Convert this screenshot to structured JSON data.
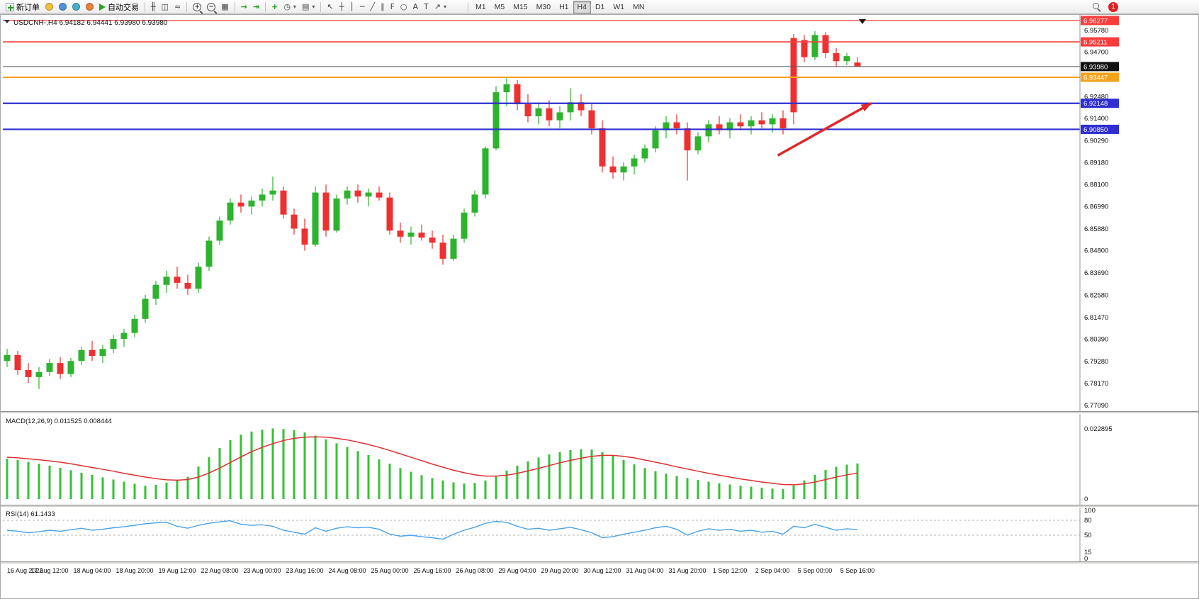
{
  "toolbar": {
    "new_order_label": "新订单",
    "autotrading_label": "自动交易",
    "timeframes": [
      "M1",
      "M5",
      "M15",
      "M30",
      "H1",
      "H4",
      "D1",
      "W1",
      "MN"
    ],
    "active_timeframe": "H4",
    "notification_count": "1"
  },
  "icons": {
    "dropdown": "▾",
    "bars_chart": "╫",
    "candle_chart": "◫",
    "line_chart": "≈",
    "zoom_in": "+",
    "zoom_out": "−",
    "tile_windows": "▦",
    "auto_scroll": "→",
    "chart_shift": "⇥",
    "indicators_plus": "+",
    "periods_clock": "◷",
    "template": "▤",
    "cursor": "↖",
    "crosshair": "┼",
    "vertical_line": "│",
    "horizontal_line": "─",
    "trendline": "╱",
    "channel": "∥",
    "fibonacci": "F",
    "shapes": "○",
    "text_tool": "A",
    "label_tool": "T",
    "arrow_tool": "↗"
  },
  "chart": {
    "symbol_period": "USDCNH-,H4",
    "ohlc": [
      "6.94182",
      "6.94441",
      "6.93980",
      "6.93980"
    ],
    "price_scale_ticks": [
      6.9578,
      6.947,
      6.9248,
      6.914,
      6.9029,
      6.8918,
      6.881,
      6.8699,
      6.8588,
      6.848,
      6.8369,
      6.8258,
      6.8147,
      6.8039,
      6.7928,
      6.7817,
      6.7709
    ],
    "price_markers": [
      {
        "price": 6.96277,
        "color": "#f83c3c"
      },
      {
        "price": 6.95211,
        "color": "#f83c3c"
      },
      {
        "price": 6.9398,
        "color": "#111111"
      },
      {
        "price": 6.93447,
        "color": "#f5a21b"
      },
      {
        "price": 6.92148,
        "color": "#2e2ed2"
      },
      {
        "price": 6.9085,
        "color": "#2e2ed2"
      }
    ],
    "macd_label": "MACD(12,26,9)",
    "macd_main_value": "0.011525",
    "macd_signal_value": "0.008444",
    "macd_scale_max": "0.022895",
    "macd_scale_min": "0",
    "rsi_label": "RSI(14)",
    "rsi_value": "61.1433",
    "rsi_scale": [
      "100",
      "80",
      "50",
      "15",
      "0"
    ],
    "time_labels": [
      "16 Aug 2022",
      "17 Aug 12:00",
      "18 Aug 04:00",
      "18 Aug 20:00",
      "19 Aug 12:00",
      "22 Aug 08:00",
      "23 Aug 00:00",
      "23 Aug 16:00",
      "24 Aug 08:00",
      "25 Aug 00:00",
      "25 Aug 16:00",
      "26 Aug 08:00",
      "29 Aug 04:00",
      "29 Aug 20:00",
      "30 Aug 12:00",
      "31 Aug 04:00",
      "31 Aug 20:00",
      "1 Sep 12:00",
      "2 Sep 04:00",
      "5 Sep 00:00",
      "5 Sep 16:00"
    ]
  },
  "chart_data": {
    "type": "candlestick",
    "symbol": "USDCNH",
    "timeframe": "H4",
    "ylim": [
      6.768,
      6.9645
    ],
    "bid": 6.9398,
    "macd_max": 0.022895,
    "rsi_levels": [
      80,
      50
    ],
    "colors": {
      "up": "#2db32d",
      "down": "#ef3030",
      "macd_bar": "#35c135",
      "macd_signal": "#e03030",
      "rsi_line": "#4aa3e8"
    },
    "levels": [
      {
        "price": 6.96277,
        "color": "#f83c3c",
        "width": 1.2
      },
      {
        "price": 6.95211,
        "color": "#f83c3c",
        "width": 1.6
      },
      {
        "price": 6.93447,
        "color": "#f5a21b",
        "width": 2
      },
      {
        "price": 6.92148,
        "color": "#2e2ed2",
        "width": 2.2
      },
      {
        "price": 6.9085,
        "color": "#2e2ed2",
        "width": 2.2
      }
    ],
    "annotations": [
      {
        "type": "arrow",
        "i1": 72.5,
        "p1": 6.8955,
        "i2": 81.3,
        "p2": 6.9215,
        "color": "#e22828"
      }
    ],
    "candles": [
      [
        6.793,
        6.799,
        6.79,
        6.796
      ],
      [
        6.796,
        6.798,
        6.786,
        6.7885
      ],
      [
        6.7885,
        6.792,
        6.782,
        6.785
      ],
      [
        6.785,
        6.79,
        6.779,
        6.7875
      ],
      [
        6.7875,
        6.794,
        6.7855,
        6.792
      ],
      [
        6.792,
        6.795,
        6.784,
        6.7865
      ],
      [
        6.7865,
        6.7945,
        6.785,
        6.793
      ],
      [
        6.793,
        6.8,
        6.791,
        6.7985
      ],
      [
        6.7985,
        6.803,
        6.793,
        6.7955
      ],
      [
        6.7955,
        6.801,
        6.792,
        6.799
      ],
      [
        6.799,
        6.806,
        6.797,
        6.804
      ],
      [
        6.804,
        6.809,
        6.8,
        6.807
      ],
      [
        6.807,
        6.816,
        6.805,
        6.814
      ],
      [
        6.814,
        6.826,
        6.812,
        6.824
      ],
      [
        6.824,
        6.833,
        6.821,
        6.831
      ],
      [
        6.831,
        6.838,
        6.827,
        6.835
      ],
      [
        6.835,
        6.84,
        6.829,
        6.832
      ],
      [
        6.832,
        6.836,
        6.826,
        6.829
      ],
      [
        6.829,
        6.842,
        6.827,
        6.84
      ],
      [
        6.84,
        6.855,
        6.838,
        6.853
      ],
      [
        6.853,
        6.865,
        6.851,
        6.863
      ],
      [
        6.863,
        6.874,
        6.861,
        6.872
      ],
      [
        6.872,
        6.876,
        6.867,
        6.87
      ],
      [
        6.87,
        6.875,
        6.866,
        6.873
      ],
      [
        6.873,
        6.879,
        6.87,
        6.876
      ],
      [
        6.876,
        6.885,
        6.873,
        6.878
      ],
      [
        6.878,
        6.88,
        6.864,
        6.866
      ],
      [
        6.866,
        6.869,
        6.856,
        6.859
      ],
      [
        6.859,
        6.864,
        6.848,
        6.851
      ],
      [
        6.851,
        6.88,
        6.85,
        6.877
      ],
      [
        6.877,
        6.881,
        6.855,
        6.858
      ],
      [
        6.858,
        6.876,
        6.857,
        6.874
      ],
      [
        6.874,
        6.88,
        6.871,
        6.878
      ],
      [
        6.878,
        6.881,
        6.872,
        6.875
      ],
      [
        6.875,
        6.879,
        6.87,
        6.877
      ],
      [
        6.877,
        6.88,
        6.873,
        6.8745
      ],
      [
        6.8745,
        6.877,
        6.856,
        6.858
      ],
      [
        6.858,
        6.862,
        6.852,
        6.855
      ],
      [
        6.855,
        6.86,
        6.851,
        6.857
      ],
      [
        6.857,
        6.861,
        6.853,
        6.8545
      ],
      [
        6.8545,
        6.858,
        6.849,
        6.852
      ],
      [
        6.852,
        6.856,
        6.841,
        6.844
      ],
      [
        6.844,
        6.856,
        6.843,
        6.854
      ],
      [
        6.854,
        6.869,
        6.852,
        6.867
      ],
      [
        6.867,
        6.878,
        6.865,
        6.876
      ],
      [
        6.876,
        6.9,
        6.874,
        6.899
      ],
      [
        6.899,
        6.93,
        6.898,
        6.927
      ],
      [
        6.927,
        6.934,
        6.92,
        6.931
      ],
      [
        6.931,
        6.933,
        6.918,
        6.921
      ],
      [
        6.921,
        6.926,
        6.912,
        6.915
      ],
      [
        6.915,
        6.922,
        6.911,
        6.919
      ],
      [
        6.919,
        6.923,
        6.91,
        6.913
      ],
      [
        6.913,
        6.92,
        6.909,
        6.917
      ],
      [
        6.917,
        6.929,
        6.913,
        6.922
      ],
      [
        6.922,
        6.926,
        6.915,
        6.918
      ],
      [
        6.918,
        6.921,
        6.906,
        6.909
      ],
      [
        6.909,
        6.913,
        6.887,
        6.89
      ],
      [
        6.89,
        6.895,
        6.884,
        6.887
      ],
      [
        6.887,
        6.892,
        6.883,
        6.89
      ],
      [
        6.89,
        6.896,
        6.886,
        6.894
      ],
      [
        6.894,
        6.901,
        6.892,
        6.899
      ],
      [
        6.899,
        6.91,
        6.897,
        6.908
      ],
      [
        6.908,
        6.915,
        6.904,
        6.912
      ],
      [
        6.912,
        6.916,
        6.906,
        6.909
      ],
      [
        6.909,
        6.912,
        6.883,
        6.898
      ],
      [
        6.898,
        6.907,
        6.896,
        6.905
      ],
      [
        6.905,
        6.913,
        6.902,
        6.911
      ],
      [
        6.911,
        6.915,
        6.906,
        6.908
      ],
      [
        6.908,
        6.914,
        6.904,
        6.912
      ],
      [
        6.912,
        6.916,
        6.908,
        6.91
      ],
      [
        6.91,
        6.915,
        6.906,
        6.913
      ],
      [
        6.913,
        6.917,
        6.909,
        6.911
      ],
      [
        6.911,
        6.916,
        6.907,
        6.914
      ],
      [
        6.914,
        6.918,
        6.906,
        6.909
      ],
      [
        6.954,
        6.956,
        6.911,
        6.917
      ],
      [
        6.953,
        6.9555,
        6.942,
        6.9445
      ],
      [
        6.9445,
        6.9575,
        6.943,
        6.9555
      ],
      [
        6.9555,
        6.957,
        6.944,
        6.9465
      ],
      [
        6.9465,
        6.949,
        6.9395,
        6.9425
      ],
      [
        6.9425,
        6.9465,
        6.9405,
        6.945
      ],
      [
        6.9418,
        6.9444,
        6.9398,
        6.9398
      ]
    ],
    "macd_histogram": [
      0.013,
      0.0126,
      0.012,
      0.0114,
      0.0108,
      0.0101,
      0.0093,
      0.0085,
      0.0078,
      0.007,
      0.0063,
      0.0056,
      0.0049,
      0.0043,
      0.0046,
      0.0053,
      0.0061,
      0.0072,
      0.0105,
      0.0135,
      0.0165,
      0.019,
      0.0208,
      0.0218,
      0.0224,
      0.0228,
      0.0226,
      0.0222,
      0.0215,
      0.0205,
      0.0193,
      0.018,
      0.0168,
      0.0155,
      0.0142,
      0.0128,
      0.0114,
      0.01,
      0.0088,
      0.0077,
      0.0068,
      0.006,
      0.0054,
      0.005,
      0.0052,
      0.006,
      0.0075,
      0.0092,
      0.0108,
      0.0122,
      0.0134,
      0.0144,
      0.0152,
      0.0158,
      0.0161,
      0.016,
      0.0152,
      0.014,
      0.0126,
      0.0112,
      0.01,
      0.009,
      0.0082,
      0.0075,
      0.0068,
      0.0062,
      0.0056,
      0.0051,
      0.0047,
      0.0043,
      0.004,
      0.0037,
      0.0034,
      0.0032,
      0.0044,
      0.006,
      0.0078,
      0.0094,
      0.0104,
      0.0111,
      0.0115
    ],
    "macd_signal": [
      0.0135,
      0.0133,
      0.013,
      0.0127,
      0.0123,
      0.0119,
      0.0114,
      0.0108,
      0.0102,
      0.0096,
      0.009,
      0.0083,
      0.0077,
      0.0071,
      0.0066,
      0.0062,
      0.0061,
      0.0063,
      0.0071,
      0.0084,
      0.01,
      0.0118,
      0.0136,
      0.0153,
      0.0167,
      0.0179,
      0.0189,
      0.0196,
      0.02,
      0.0201,
      0.02,
      0.0196,
      0.0191,
      0.0184,
      0.0176,
      0.0167,
      0.0157,
      0.0146,
      0.0135,
      0.0124,
      0.0113,
      0.0103,
      0.0093,
      0.0085,
      0.0078,
      0.0074,
      0.0074,
      0.0077,
      0.0083,
      0.0091,
      0.0099,
      0.0108,
      0.0117,
      0.0125,
      0.0132,
      0.0138,
      0.0141,
      0.0141,
      0.0138,
      0.0133,
      0.0126,
      0.0119,
      0.0112,
      0.0104,
      0.0097,
      0.009,
      0.0083,
      0.0077,
      0.0071,
      0.0065,
      0.006,
      0.0055,
      0.0051,
      0.0047,
      0.0046,
      0.0049,
      0.0055,
      0.0063,
      0.0071,
      0.0078,
      0.0084
    ],
    "rsi": [
      60,
      58,
      55,
      57,
      60,
      58,
      61,
      64,
      60,
      62,
      65,
      67,
      70,
      73,
      75,
      76,
      68,
      64,
      70,
      74,
      77,
      79,
      72,
      70,
      71,
      68,
      60,
      56,
      52,
      65,
      58,
      64,
      67,
      65,
      66,
      62,
      52,
      48,
      50,
      47,
      45,
      42,
      52,
      60,
      66,
      74,
      78,
      76,
      68,
      62,
      64,
      60,
      63,
      66,
      61,
      55,
      45,
      47,
      52,
      56,
      60,
      65,
      68,
      62,
      50,
      58,
      63,
      60,
      62,
      58,
      60,
      56,
      58,
      52,
      68,
      65,
      72,
      66,
      60,
      63,
      61.14
    ]
  }
}
